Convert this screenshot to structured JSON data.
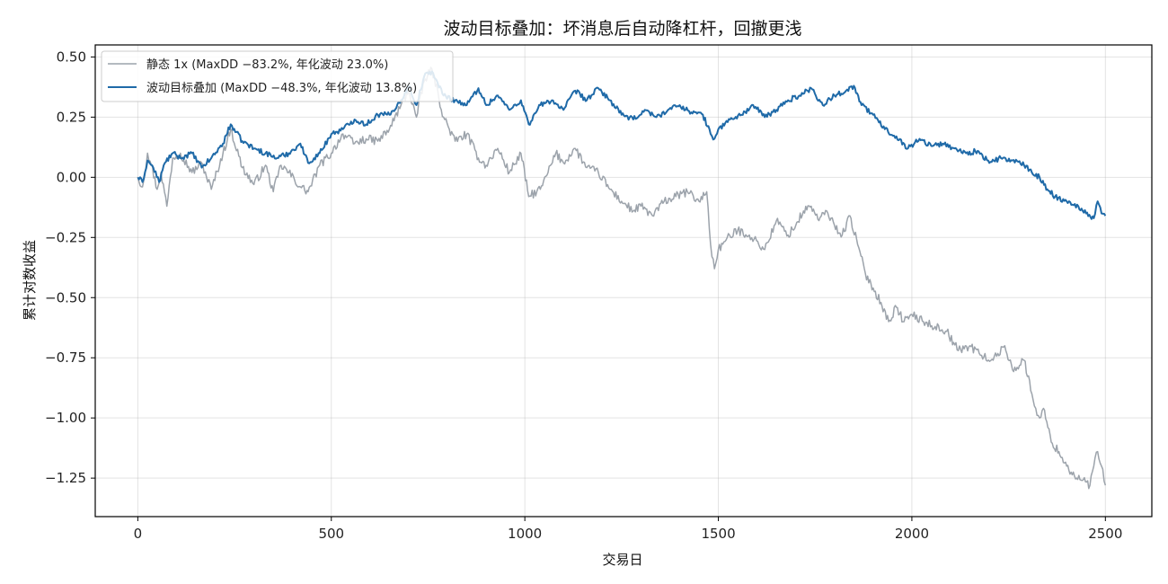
{
  "chart_data": {
    "type": "line",
    "title": "波动目标叠加：坏消息后自动降杠杆，回撤更浅",
    "xlabel": "交易日",
    "ylabel": "累计对数收益",
    "xlim": [
      -110,
      2620
    ],
    "ylim": [
      -1.41,
      0.55
    ],
    "xticks": [
      0,
      500,
      1000,
      1500,
      2000,
      2500
    ],
    "xtick_labels": [
      "0",
      "500",
      "1000",
      "1500",
      "2000",
      "2500"
    ],
    "yticks": [
      0.5,
      0.25,
      0.0,
      -0.25,
      -0.5,
      -0.75,
      -1.0,
      -1.25
    ],
    "ytick_labels": [
      "0.50",
      "0.25",
      "0.00",
      "−0.25",
      "−0.50",
      "−0.75",
      "−1.00",
      "−1.25"
    ],
    "grid": true,
    "legend_position": "upper-left",
    "series": [
      {
        "name": "静态 1x (MaxDD −83.2%, 年化波动 23.0%)",
        "color": "#9ca3ab",
        "x": [
          0,
          12,
          25,
          35,
          50,
          60,
          75,
          90,
          110,
          140,
          165,
          190,
          220,
          240,
          270,
          300,
          330,
          350,
          370,
          390,
          420,
          440,
          470,
          500,
          530,
          560,
          590,
          620,
          650,
          680,
          700,
          720,
          740,
          760,
          790,
          820,
          850,
          880,
          900,
          930,
          960,
          990,
          1010,
          1040,
          1060,
          1080,
          1100,
          1130,
          1160,
          1190,
          1220,
          1250,
          1280,
          1300,
          1330,
          1360,
          1390,
          1420,
          1450,
          1470,
          1480,
          1490,
          1500,
          1520,
          1550,
          1580,
          1620,
          1650,
          1680,
          1700,
          1720,
          1740,
          1760,
          1780,
          1800,
          1820,
          1840,
          1860,
          1880,
          1900,
          1920,
          1940,
          1960,
          1980,
          2000,
          2030,
          2060,
          2090,
          2120,
          2150,
          2180,
          2210,
          2240,
          2260,
          2290,
          2310,
          2320,
          2330,
          2340,
          2360,
          2380,
          2400,
          2420,
          2440,
          2460,
          2470,
          2480,
          2490,
          2500
        ],
        "y": [
          0.0,
          -0.04,
          0.1,
          0.05,
          -0.05,
          0.02,
          -0.12,
          0.08,
          0.1,
          0.02,
          0.06,
          -0.05,
          0.1,
          0.2,
          0.04,
          -0.03,
          0.05,
          -0.06,
          0.05,
          0.02,
          -0.04,
          -0.06,
          0.05,
          0.1,
          0.18,
          0.14,
          0.16,
          0.15,
          0.2,
          0.3,
          0.36,
          0.25,
          0.4,
          0.45,
          0.25,
          0.15,
          0.18,
          0.08,
          0.05,
          0.12,
          0.02,
          0.1,
          -0.08,
          -0.05,
          0.02,
          0.1,
          0.06,
          0.12,
          0.04,
          0.02,
          -0.05,
          -0.1,
          -0.14,
          -0.12,
          -0.16,
          -0.1,
          -0.08,
          -0.06,
          -0.1,
          -0.06,
          -0.28,
          -0.38,
          -0.3,
          -0.26,
          -0.22,
          -0.24,
          -0.3,
          -0.18,
          -0.24,
          -0.2,
          -0.14,
          -0.12,
          -0.18,
          -0.14,
          -0.2,
          -0.24,
          -0.16,
          -0.28,
          -0.4,
          -0.46,
          -0.52,
          -0.6,
          -0.54,
          -0.6,
          -0.57,
          -0.6,
          -0.62,
          -0.64,
          -0.72,
          -0.7,
          -0.74,
          -0.76,
          -0.7,
          -0.8,
          -0.76,
          -0.9,
          -0.96,
          -1.0,
          -0.96,
          -1.1,
          -1.14,
          -1.2,
          -1.24,
          -1.26,
          -1.28,
          -1.2,
          -1.14,
          -1.2,
          -1.28
        ]
      },
      {
        "name": "波动目标叠加 (MaxDD −48.3%, 年化波动 13.8%)",
        "color": "#1f6aa8",
        "x": [
          0,
          12,
          25,
          40,
          55,
          70,
          90,
          110,
          140,
          165,
          190,
          220,
          240,
          270,
          300,
          330,
          360,
          390,
          420,
          440,
          470,
          500,
          530,
          560,
          590,
          620,
          650,
          680,
          700,
          720,
          740,
          760,
          790,
          820,
          850,
          880,
          900,
          930,
          960,
          990,
          1010,
          1040,
          1070,
          1100,
          1130,
          1160,
          1190,
          1220,
          1250,
          1280,
          1310,
          1340,
          1370,
          1400,
          1430,
          1460,
          1480,
          1490,
          1500,
          1530,
          1560,
          1590,
          1620,
          1650,
          1680,
          1710,
          1740,
          1770,
          1800,
          1830,
          1850,
          1870,
          1900,
          1930,
          1960,
          1990,
          2020,
          2050,
          2080,
          2110,
          2140,
          2170,
          2200,
          2230,
          2260,
          2290,
          2310,
          2330,
          2350,
          2370,
          2400,
          2430,
          2450,
          2470,
          2480,
          2490,
          2500
        ],
        "y": [
          0.0,
          -0.02,
          0.07,
          0.04,
          -0.02,
          0.06,
          0.1,
          0.08,
          0.1,
          0.04,
          0.08,
          0.14,
          0.22,
          0.15,
          0.12,
          0.1,
          0.08,
          0.1,
          0.14,
          0.06,
          0.1,
          0.18,
          0.2,
          0.24,
          0.22,
          0.26,
          0.26,
          0.32,
          0.38,
          0.3,
          0.42,
          0.44,
          0.34,
          0.32,
          0.3,
          0.37,
          0.3,
          0.34,
          0.28,
          0.32,
          0.22,
          0.3,
          0.32,
          0.28,
          0.36,
          0.32,
          0.37,
          0.32,
          0.26,
          0.24,
          0.28,
          0.25,
          0.28,
          0.3,
          0.27,
          0.26,
          0.18,
          0.16,
          0.2,
          0.24,
          0.26,
          0.3,
          0.25,
          0.28,
          0.32,
          0.34,
          0.37,
          0.3,
          0.34,
          0.36,
          0.38,
          0.3,
          0.26,
          0.2,
          0.17,
          0.12,
          0.16,
          0.13,
          0.14,
          0.12,
          0.1,
          0.11,
          0.06,
          0.08,
          0.07,
          0.05,
          0.02,
          0.0,
          -0.05,
          -0.08,
          -0.1,
          -0.12,
          -0.15,
          -0.17,
          -0.1,
          -0.15,
          -0.16
        ]
      }
    ]
  }
}
